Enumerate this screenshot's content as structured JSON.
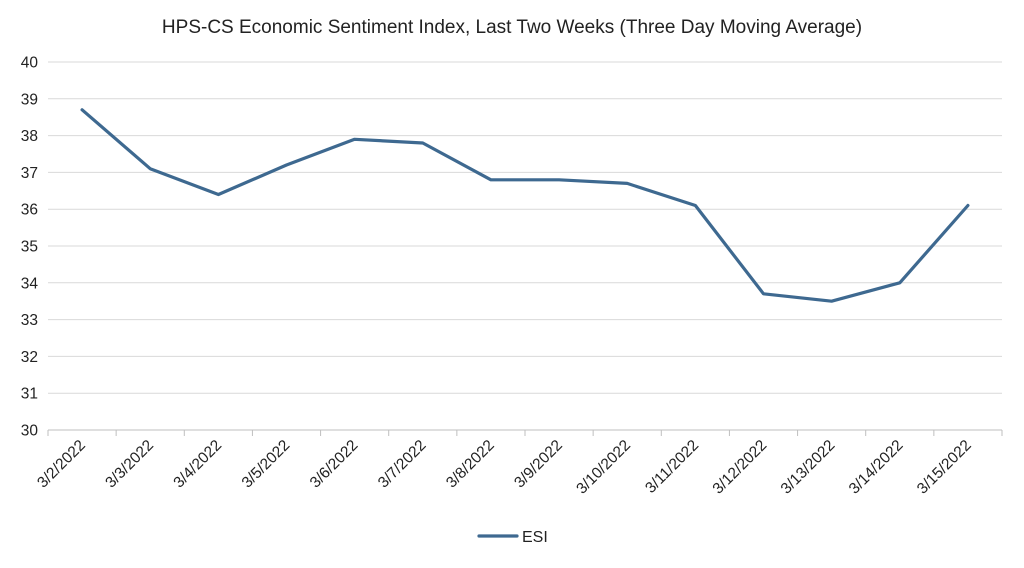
{
  "chart_data": {
    "type": "line",
    "title": "HPS-CS Economic Sentiment Index, Last Two Weeks (Three Day Moving Average)",
    "xlabel": "",
    "ylabel": "",
    "categories": [
      "3/2/2022",
      "3/3/2022",
      "3/4/2022",
      "3/5/2022",
      "3/6/2022",
      "3/7/2022",
      "3/8/2022",
      "3/9/2022",
      "3/10/2022",
      "3/11/2022",
      "3/12/2022",
      "3/13/2022",
      "3/14/2022",
      "3/15/2022"
    ],
    "series": [
      {
        "name": "ESI",
        "color": "#3E6990",
        "values": [
          38.7,
          37.1,
          36.4,
          37.2,
          37.9,
          37.8,
          36.8,
          36.8,
          36.7,
          36.1,
          33.7,
          33.5,
          34.0,
          36.1
        ]
      }
    ],
    "ylim": [
      30,
      40
    ],
    "yticks": [
      "30",
      "31",
      "32",
      "33",
      "34",
      "35",
      "36",
      "37",
      "38",
      "39",
      "40"
    ],
    "grid": "horizontal",
    "legend_position": "bottom-center",
    "colors": {
      "gridline": "#D9D9D9",
      "axis": "#BFBFBF"
    }
  }
}
